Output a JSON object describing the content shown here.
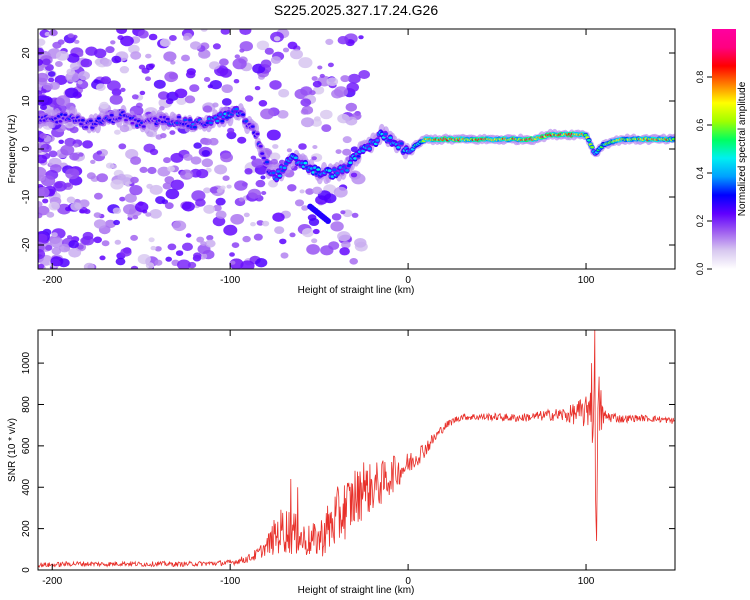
{
  "title": "S225.2025.327.17.24.G26",
  "chart_data": [
    {
      "type": "heatmap",
      "xlabel": "Height of straight line (km)",
      "ylabel": "Frequency (Hz)",
      "xlim": [
        -208,
        150
      ],
      "ylim": [
        -25,
        25
      ],
      "xticks": [
        -200,
        -100,
        0,
        100
      ],
      "xtick_labels": [
        "-200",
        "-100",
        "0",
        "100"
      ],
      "yticks": [
        -20,
        -10,
        0,
        10,
        20
      ],
      "ytick_labels": [
        "-20",
        "-10",
        "0",
        "10",
        "20"
      ],
      "colorbar": {
        "label": "Normalized spectral amplitude",
        "range": [
          0,
          1
        ],
        "ticks": [
          0.0,
          0.2,
          0.4,
          0.6,
          0.8
        ],
        "tick_labels": [
          "0.0",
          "0.2",
          "0.4",
          "0.6",
          "0.8"
        ],
        "colors": [
          "#ffffff",
          "#d8c8f0",
          "#a060f0",
          "#6000ff",
          "#0000ff",
          "#00a0ff",
          "#00f0f0",
          "#00ff60",
          "#a0ff00",
          "#ffff00",
          "#ff8000",
          "#ff0000",
          "#ff0080",
          "#ff00a0"
        ]
      },
      "ridge": {
        "x": [
          -200,
          -190,
          -180,
          -170,
          -160,
          -150,
          -140,
          -130,
          -120,
          -110,
          -100,
          -95,
          -90,
          -85,
          -80,
          -75,
          -70,
          -65,
          -60,
          -55,
          -50,
          -45,
          -40,
          -35,
          -30,
          -25,
          -20,
          -15,
          -10,
          -5,
          0,
          5,
          10,
          20,
          30,
          40,
          50,
          60,
          70,
          80,
          90,
          100,
          105,
          110,
          120,
          130,
          140,
          150
        ],
        "f": [
          6,
          7,
          5,
          6,
          7,
          5,
          6,
          6,
          5,
          6,
          7,
          8,
          5,
          3,
          -3,
          -6,
          -4,
          -2,
          -3,
          -4,
          -5,
          -5,
          -5,
          -4,
          -2,
          0,
          1,
          3,
          2,
          1,
          -1,
          1,
          2,
          2,
          2,
          2,
          2,
          2,
          2,
          3,
          3,
          3,
          -1,
          1,
          2,
          2,
          2,
          2
        ],
        "amp": [
          0.3,
          0.3,
          0.3,
          0.3,
          0.3,
          0.3,
          0.32,
          0.33,
          0.35,
          0.35,
          0.42,
          0.42,
          0.3,
          0.3,
          0.33,
          0.42,
          0.42,
          0.43,
          0.43,
          0.42,
          0.43,
          0.45,
          0.42,
          0.42,
          0.42,
          0.43,
          0.45,
          0.42,
          0.42,
          0.42,
          0.45,
          0.5,
          0.72,
          0.85,
          0.85,
          0.78,
          0.78,
          0.8,
          0.85,
          0.82,
          0.88,
          0.72,
          0.45,
          0.55,
          0.72,
          0.75,
          0.78,
          0.75
        ]
      },
      "secondary_streak": {
        "x": [
          -55,
          -45
        ],
        "f": [
          -12,
          -15
        ]
      }
    },
    {
      "type": "line",
      "xlabel": "Height of straight line (km)",
      "ylabel": "SNR (10 * v/v)",
      "xlim": [
        -208,
        150
      ],
      "ylim": [
        0,
        1160
      ],
      "xticks": [
        -200,
        -100,
        0,
        100
      ],
      "xtick_labels": [
        "-200",
        "-100",
        "0",
        "100"
      ],
      "yticks": [
        0,
        200,
        400,
        600,
        800,
        1000
      ],
      "ytick_labels": [
        "0",
        "200",
        "400",
        "600",
        "800",
        "1000"
      ],
      "color": "#e8302a",
      "series": [
        {
          "name": "SNR",
          "x": [
            -208,
            -200,
            -190,
            -180,
            -170,
            -160,
            -150,
            -140,
            -130,
            -120,
            -110,
            -100,
            -95,
            -90,
            -85,
            -80,
            -75,
            -70,
            -65,
            -60,
            -55,
            -50,
            -45,
            -40,
            -35,
            -30,
            -25,
            -20,
            -15,
            -10,
            -5,
            0,
            5,
            10,
            15,
            20,
            25,
            30,
            40,
            50,
            60,
            70,
            80,
            90,
            95,
            100,
            103,
            105,
            106,
            107,
            110,
            115,
            120,
            130,
            140,
            150
          ],
          "y": [
            25,
            25,
            30,
            30,
            28,
            32,
            28,
            30,
            28,
            30,
            32,
            35,
            45,
            55,
            75,
            110,
            160,
            200,
            180,
            150,
            140,
            150,
            200,
            250,
            300,
            340,
            380,
            400,
            420,
            450,
            480,
            510,
            550,
            590,
            640,
            690,
            720,
            740,
            740,
            740,
            735,
            740,
            750,
            750,
            760,
            760,
            850,
            600,
            320,
            780,
            740,
            740,
            730,
            735,
            730,
            720
          ],
          "noise": [
            12,
            12,
            12,
            12,
            12,
            12,
            12,
            12,
            12,
            12,
            12,
            14,
            16,
            20,
            30,
            40,
            90,
            120,
            110,
            90,
            80,
            90,
            130,
            150,
            150,
            140,
            130,
            120,
            110,
            90,
            70,
            60,
            50,
            40,
            30,
            20,
            18,
            16,
            18,
            18,
            20,
            22,
            28,
            40,
            60,
            80,
            170,
            290,
            250,
            200,
            40,
            25,
            20,
            16,
            16,
            16
          ]
        }
      ],
      "spikes": [
        {
          "x": -66,
          "y": 440
        },
        {
          "x": -62,
          "y": 400
        },
        {
          "x": -30,
          "y": 480
        },
        {
          "x": -25,
          "y": 520
        },
        {
          "x": -8,
          "y": 550
        },
        {
          "x": 103,
          "y": 1000
        },
        {
          "x": 105,
          "y": 1160
        },
        {
          "x": 106,
          "y": 140
        }
      ]
    }
  ]
}
